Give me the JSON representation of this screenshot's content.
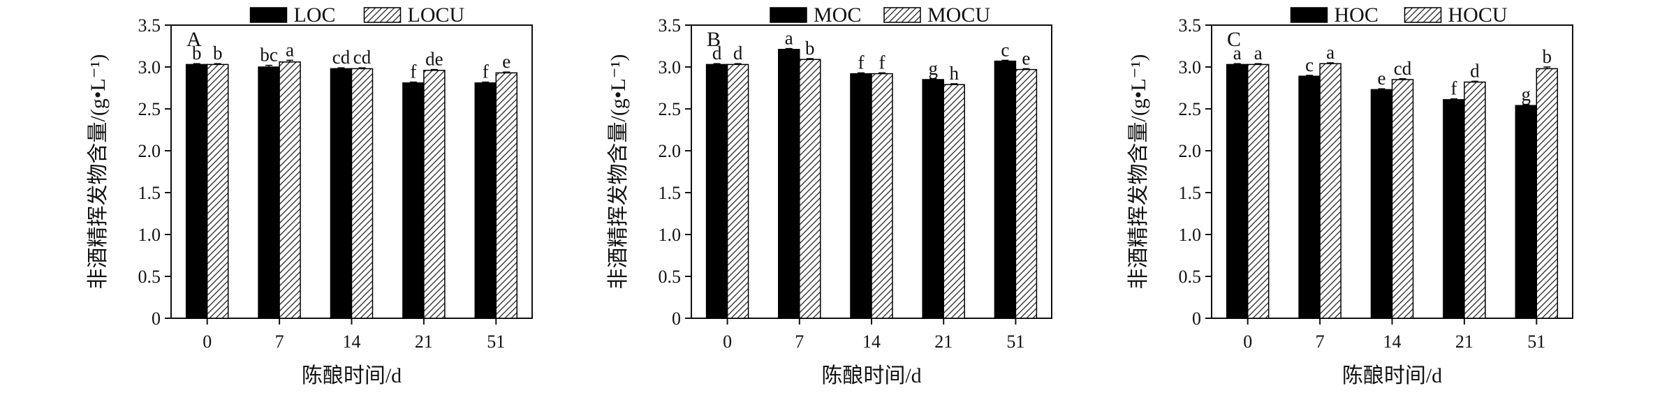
{
  "chart_data": [
    {
      "type": "bar",
      "panel_label": "A",
      "categories": [
        "0",
        "7",
        "14",
        "21",
        "51"
      ],
      "xlabel": "陈酿时间/d",
      "ylabel": "非酒精挥发物含量/(g•L⁻¹)",
      "ylim": [
        0,
        3.5
      ],
      "yticks": [
        "0",
        "0.5",
        "1.0",
        "1.5",
        "2.0",
        "2.5",
        "3.0",
        "3.5"
      ],
      "grid": false,
      "legend_position": "top",
      "series": [
        {
          "name": "LOC",
          "pattern": "solid",
          "values": [
            3.03,
            3.0,
            2.98,
            2.81,
            2.81
          ],
          "errors": [
            0.01,
            0.02,
            0.01,
            0.01,
            0.01
          ],
          "labels": [
            "b",
            "bc",
            "cd",
            "f",
            "f"
          ]
        },
        {
          "name": "LOCU",
          "pattern": "hatched",
          "values": [
            3.03,
            3.06,
            2.98,
            2.96,
            2.93
          ],
          "errors": [
            0.01,
            0.02,
            0.01,
            0.01,
            0.01
          ],
          "labels": [
            "b",
            "a",
            "cd",
            "de",
            "e"
          ]
        }
      ]
    },
    {
      "type": "bar",
      "panel_label": "B",
      "categories": [
        "0",
        "7",
        "14",
        "21",
        "51"
      ],
      "xlabel": "陈酿时间/d",
      "ylabel": "非酒精挥发物含量/(g•L⁻¹)",
      "ylim": [
        0,
        3.5
      ],
      "yticks": [
        "0",
        "0.5",
        "1.0",
        "1.5",
        "2.0",
        "2.5",
        "3.0",
        "3.5"
      ],
      "grid": false,
      "legend_position": "top",
      "series": [
        {
          "name": "MOC",
          "pattern": "solid",
          "values": [
            3.03,
            3.21,
            2.92,
            2.85,
            3.07
          ],
          "errors": [
            0.01,
            0.01,
            0.01,
            0.01,
            0.01
          ],
          "labels": [
            "d",
            "a",
            "f",
            "g",
            "c"
          ]
        },
        {
          "name": "MOCU",
          "pattern": "hatched",
          "values": [
            3.03,
            3.09,
            2.92,
            2.79,
            2.97
          ],
          "errors": [
            0.01,
            0.01,
            0.01,
            0.01,
            0.01
          ],
          "labels": [
            "d",
            "b",
            "f",
            "h",
            "e"
          ]
        }
      ]
    },
    {
      "type": "bar",
      "panel_label": "C",
      "categories": [
        "0",
        "7",
        "14",
        "21",
        "51"
      ],
      "xlabel": "陈酿时间/d",
      "ylabel": "非酒精挥发物含量/(g•L⁻¹)",
      "ylim": [
        0,
        3.5
      ],
      "yticks": [
        "0",
        "0.5",
        "1.0",
        "1.5",
        "2.0",
        "2.5",
        "3.0",
        "3.5"
      ],
      "grid": false,
      "legend_position": "top",
      "series": [
        {
          "name": "HOC",
          "pattern": "solid",
          "values": [
            3.03,
            2.89,
            2.73,
            2.61,
            2.54
          ],
          "errors": [
            0.01,
            0.01,
            0.01,
            0.01,
            0.01
          ],
          "labels": [
            "a",
            "c",
            "e",
            "f",
            "g"
          ]
        },
        {
          "name": "HOCU",
          "pattern": "hatched",
          "values": [
            3.03,
            3.04,
            2.85,
            2.82,
            2.98
          ],
          "errors": [
            0.01,
            0.01,
            0.01,
            0.01,
            0.02
          ],
          "labels": [
            "a",
            "a",
            "cd",
            "d",
            "b"
          ]
        }
      ]
    }
  ]
}
